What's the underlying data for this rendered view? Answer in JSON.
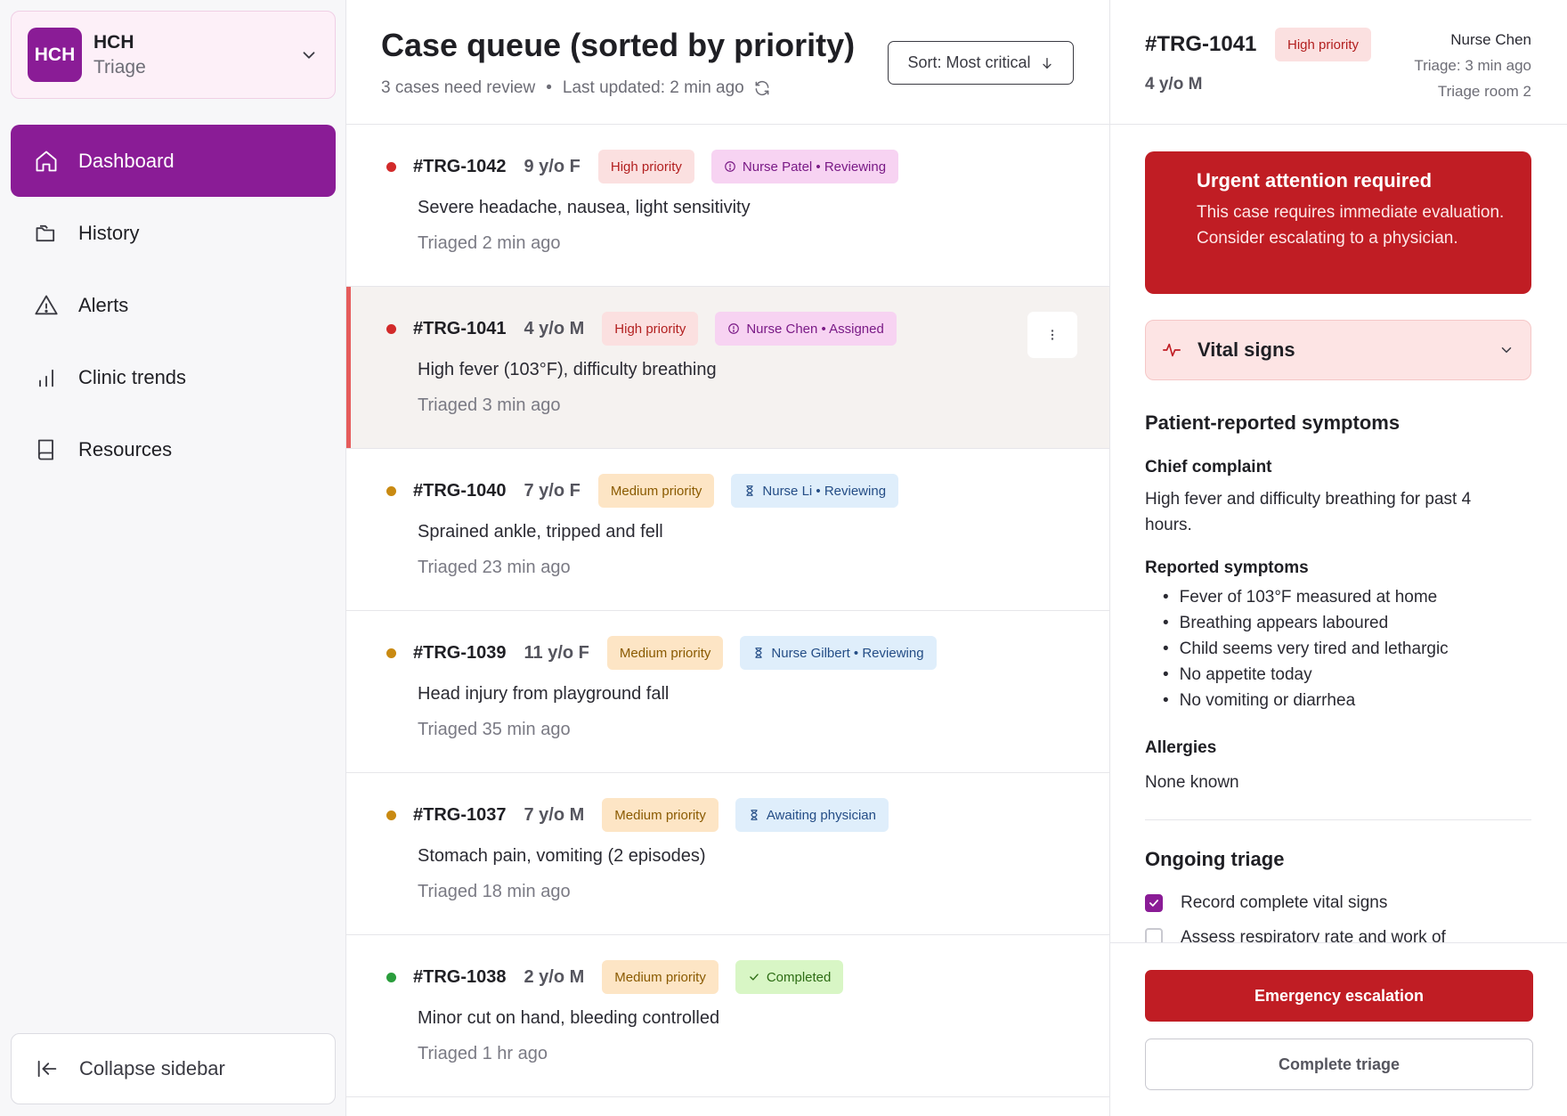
{
  "sidebar": {
    "org": {
      "logo_text": "HCH",
      "name": "HCH",
      "subtitle": "Triage"
    },
    "items": [
      {
        "label": "Dashboard",
        "icon": "home-icon",
        "active": true
      },
      {
        "label": "History",
        "icon": "folders-icon"
      },
      {
        "label": "Alerts",
        "icon": "warning-icon"
      },
      {
        "label": "Clinic trends",
        "icon": "bar-chart-icon"
      },
      {
        "label": "Resources",
        "icon": "book-icon"
      }
    ],
    "collapse_label": "Collapse sidebar"
  },
  "queue": {
    "title": "Case queue (sorted by priority)",
    "count_text": "3 cases need review",
    "separator": "•",
    "updated_text": "Last updated: 2 min ago",
    "sort_label": "Sort: Most critical",
    "cases": [
      {
        "id": "#TRG-1042",
        "age": "9 y/o F",
        "priority": "High priority",
        "status": "Nurse Patel • Reviewing",
        "desc": "Severe headache, nausea, light sensitivity",
        "time": "Triaged 2 min ago"
      },
      {
        "id": "#TRG-1041",
        "age": "4 y/o M",
        "priority": "High priority",
        "status": "Nurse Chen • Assigned",
        "desc": "High fever (103°F), difficulty breathing",
        "time": "Triaged 3 min ago"
      },
      {
        "id": "#TRG-1040",
        "age": "7 y/o F",
        "priority": "Medium priority",
        "status": "Nurse Li • Reviewing",
        "desc": "Sprained ankle, tripped and fell",
        "time": "Triaged 23 min ago"
      },
      {
        "id": "#TRG-1039",
        "age": "11 y/o F",
        "priority": "Medium priority",
        "status": "Nurse Gilbert • Reviewing",
        "desc": "Head injury from playground fall",
        "time": "Triaged 35 min ago"
      },
      {
        "id": "#TRG-1037",
        "age": "7 y/o M",
        "priority": "Medium priority",
        "status": "Awaiting physician",
        "desc": "Stomach pain, vomiting (2 episodes)",
        "time": "Triaged 18 min ago"
      },
      {
        "id": "#TRG-1038",
        "age": "2 y/o M",
        "priority": "Medium priority",
        "status": "Completed",
        "desc": "Minor cut on hand, bleeding controlled",
        "time": "Triaged 1 hr ago"
      }
    ]
  },
  "detail": {
    "id": "#TRG-1041",
    "priority": "High priority",
    "age": "4 y/o M",
    "nurse": "Nurse Chen",
    "triage_time": "Triage: 3 min ago",
    "room": "Triage room 2",
    "alert": {
      "title": "Urgent attention required",
      "body": "This case requires immediate evaluation. Consider escalating to a physician."
    },
    "vitals_label": "Vital signs",
    "symptoms_title": "Patient-reported symptoms",
    "chief_label": "Chief complaint",
    "chief_text": "High fever and difficulty breathing for past 4 hours.",
    "reported_label": "Reported symptoms",
    "reported": [
      "Fever of 103°F measured at home",
      "Breathing appears laboured",
      "Child seems very tired and lethargic",
      "No appetite today",
      "No vomiting or diarrhea"
    ],
    "allergies_label": "Allergies",
    "allergies_text": "None known",
    "ongoing_title": "Ongoing triage",
    "tasks": [
      {
        "label": "Record complete vital signs",
        "checked": true
      },
      {
        "label": "Assess respiratory rate and work of",
        "checked": false
      }
    ],
    "escalate_label": "Emergency escalation",
    "complete_label": "Complete triage"
  },
  "colors": {
    "brand": "#8a1c96",
    "high": "#d22a2a",
    "medium": "#c98a12",
    "done": "#2a9d3c",
    "urgent": "#c01d24"
  }
}
